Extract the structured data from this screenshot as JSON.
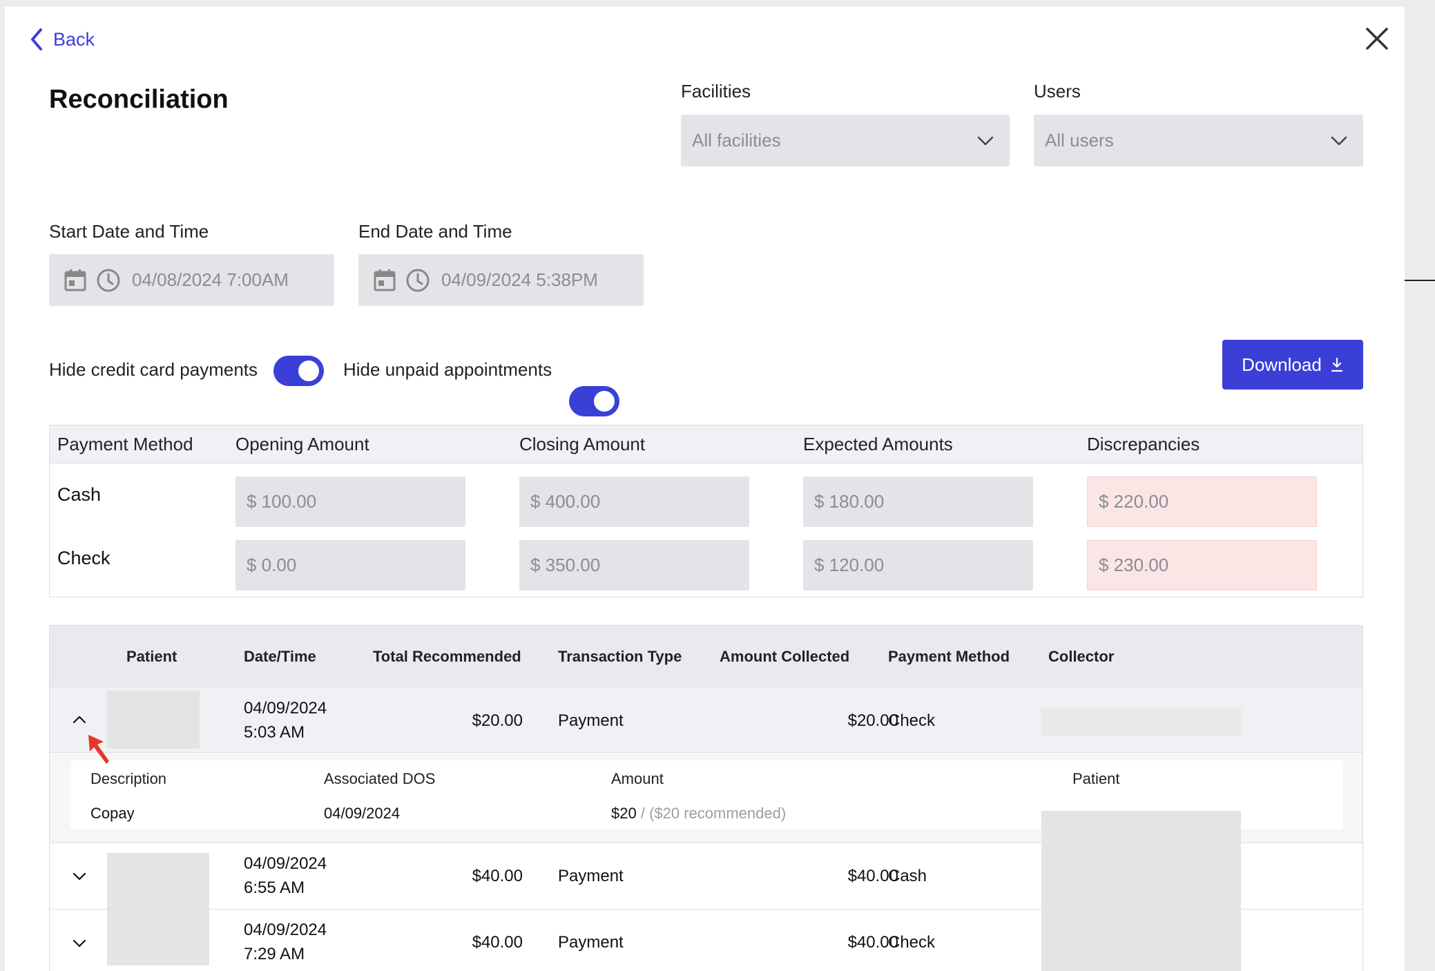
{
  "header": {
    "back_label": "Back",
    "title": "Reconciliation"
  },
  "filters": {
    "facilities_label": "Facilities",
    "facilities_value": "All facilities",
    "users_label": "Users",
    "users_value": "All users",
    "start_label": "Start Date and Time",
    "start_value": "04/08/2024 7:00AM",
    "end_label": "End Date and Time",
    "end_value": "04/09/2024 5:38PM"
  },
  "toggles": {
    "hide_cc_label": "Hide credit card payments",
    "hide_cc_on": true,
    "hide_unpaid_label": "Hide unpaid appointments",
    "hide_unpaid_on": true
  },
  "download_label": "Download",
  "summary": {
    "headers": [
      "Payment Method",
      "Opening Amount",
      "Closing Amount",
      "Expected Amounts",
      "Discrepancies"
    ],
    "rows": [
      {
        "method": "Cash",
        "opening": "$ 100.00",
        "closing": "$ 400.00",
        "expected": "$ 180.00",
        "discrepancy": "$ 220.00"
      },
      {
        "method": "Check",
        "opening": "$ 0.00",
        "closing": "$ 350.00",
        "expected": "$ 120.00",
        "discrepancy": "$ 230.00"
      }
    ]
  },
  "transactions": {
    "headers": [
      "Patient",
      "Date/Time",
      "Total Recommended",
      "Transaction Type",
      "Amount Collected",
      "Payment Method",
      "Collector"
    ],
    "rows": [
      {
        "date": "04/09/2024",
        "time": "5:03 AM",
        "recommended": "$20.00",
        "type": "Payment",
        "collected": "$20.00",
        "method": "Check",
        "expanded": true
      },
      {
        "date": "04/09/2024",
        "time": "6:55 AM",
        "recommended": "$40.00",
        "type": "Payment",
        "collected": "$40.00",
        "method": "Cash",
        "expanded": false
      },
      {
        "date": "04/09/2024",
        "time": "7:29 AM",
        "recommended": "$40.00",
        "type": "Payment",
        "collected": "$40.00",
        "method": "Check",
        "expanded": false
      }
    ],
    "detail": {
      "headers": [
        "Description",
        "Associated DOS",
        "Amount",
        "Patient"
      ],
      "description": "Copay",
      "dos": "04/09/2024",
      "amount": "$20",
      "amount_note": "/ ($20 recommended)"
    }
  },
  "colors": {
    "accent": "#3a3fd8",
    "input_bg": "#e3e4e8",
    "discrepancy_bg": "#fbe6e6",
    "cursor": "#e8352b"
  },
  "icons": [
    "chevron-left-icon",
    "close-icon",
    "chevron-down-icon",
    "calendar-icon",
    "clock-icon",
    "download-icon",
    "chevron-up-icon",
    "cursor-arrow-icon"
  ]
}
